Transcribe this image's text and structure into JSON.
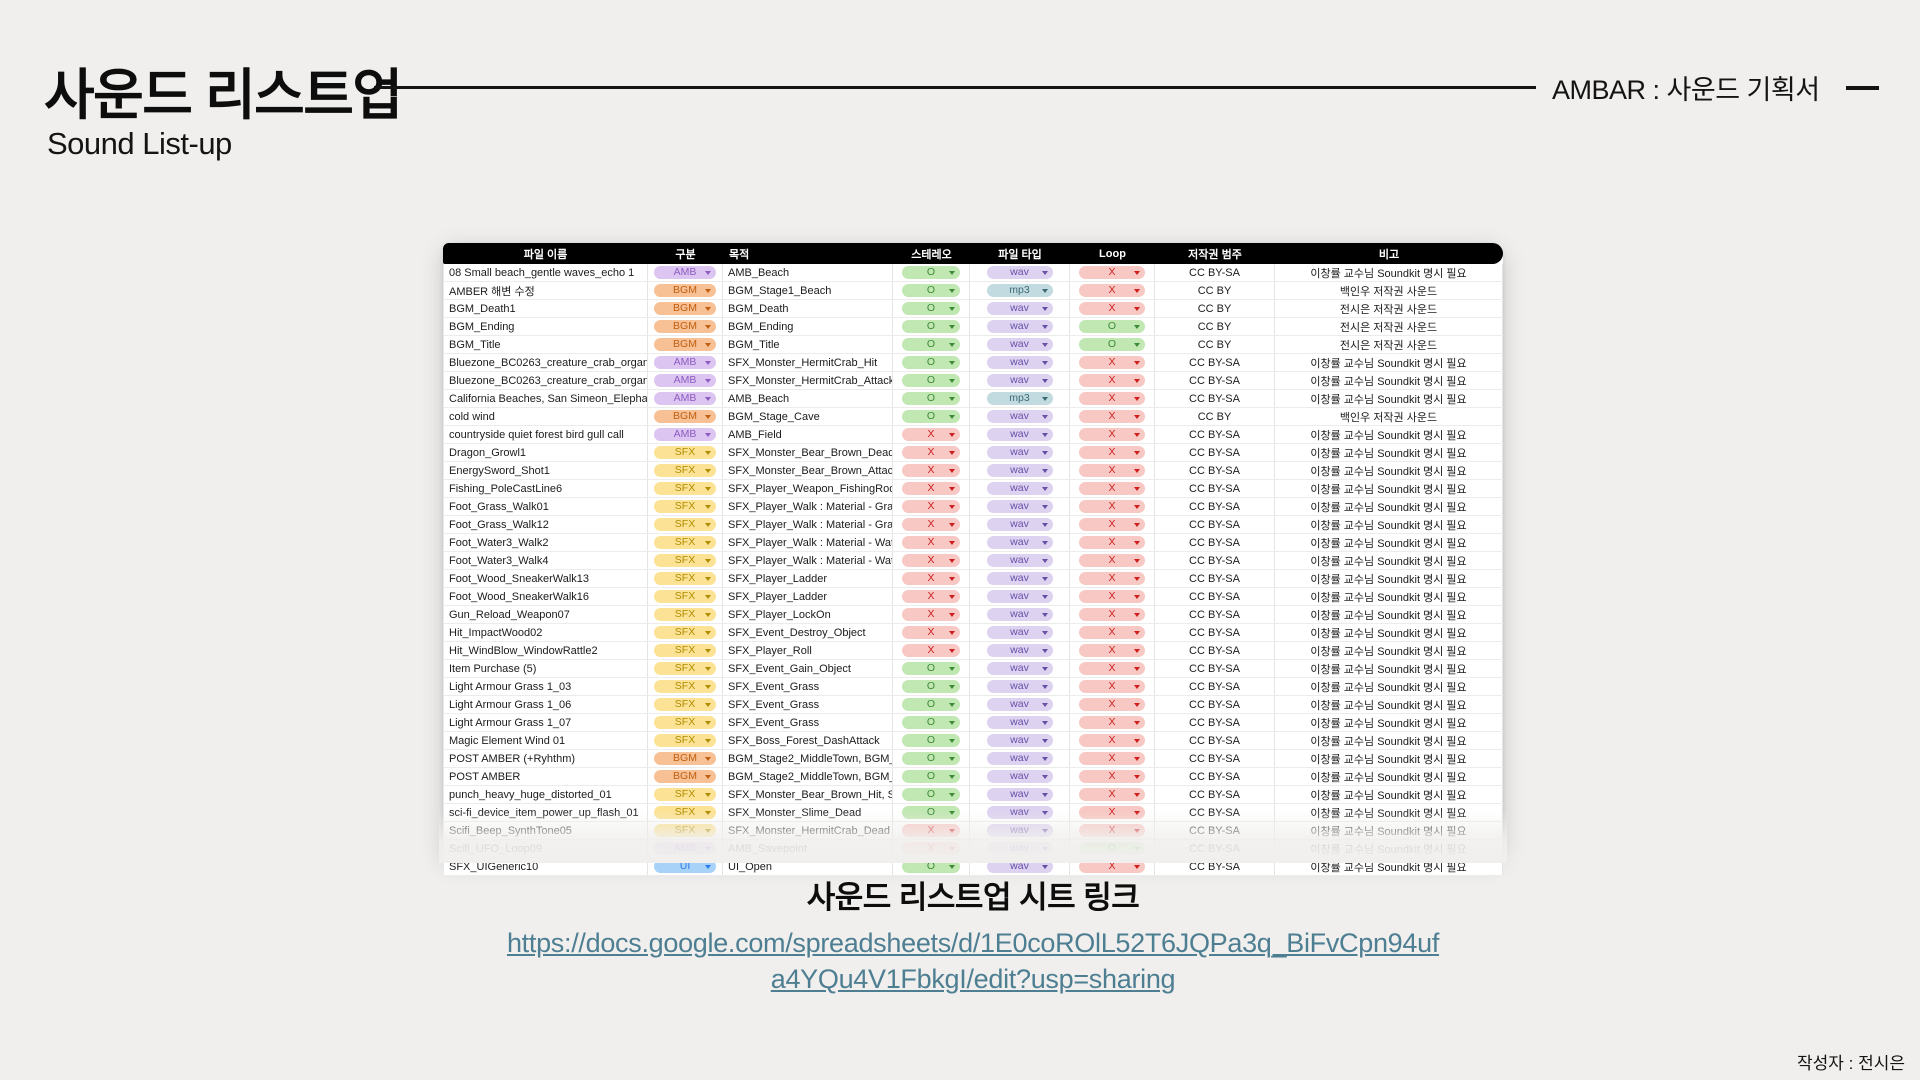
{
  "slide": {
    "title": "사운드 리스트업",
    "subtitle": "Sound List-up",
    "header_right": "AMBAR : 사운드 기획서",
    "link_heading": "사운드 리스트업 시트 링크",
    "link_line1": "https://docs.google.com/spreadsheets/d/1E0coROlL52T6JQPa3q_BiFvCpn94uf",
    "link_line2": "a4YQu4V1FbkgI/edit?usp=sharing",
    "link_url": "https://docs.google.com/spreadsheets/d/1E0coROlL52T6JQPa3q_BiFvCpn94ufa4YQu4V1FbkgI/edit?usp=sharing",
    "author": "작성자 : 전시은"
  },
  "colors": {
    "background": "#f0efed",
    "header_bar": "#000000",
    "link": "#4d7e92",
    "rule": "#141414"
  },
  "table": {
    "columns": [
      "파일 이름",
      "구분",
      "목적",
      "스테레오",
      "파일 타입",
      "Loop",
      "저작권 범주",
      "비고"
    ],
    "pill_colors": {
      "AMB": {
        "bg": "#dcc6f1",
        "fg": "#8e5bc2"
      },
      "BGM": {
        "bg": "#f8c095",
        "fg": "#c05f10"
      },
      "SFX": {
        "bg": "#fce294",
        "fg": "#b08c00"
      },
      "UI": {
        "bg": "#a9d2f8",
        "fg": "#2b7de9"
      },
      "O": {
        "bg": "#c1e7b3",
        "fg": "#3d8b37"
      },
      "X": {
        "bg": "#f8c8c4",
        "fg": "#cc1f1f"
      },
      "wav": {
        "bg": "#ddd2f0",
        "fg": "#674ea7"
      },
      "mp3": {
        "bg": "#c2dbe0",
        "fg": "#3d6a75"
      }
    },
    "rows": [
      {
        "name": "08 Small beach_gentle waves_echo 1",
        "category": "AMB",
        "purpose": "AMB_Beach",
        "stereo": "O",
        "filetype": "wav",
        "loop": "X",
        "copyright": "CC BY-SA",
        "note": "이창률 교수님 Soundkit 명시 필요"
      },
      {
        "name": "AMBER 해변 수정",
        "category": "BGM",
        "purpose": "BGM_Stage1_Beach",
        "stereo": "O",
        "filetype": "mp3",
        "loop": "X",
        "copyright": "CC BY",
        "note": "백인우 저작권 사운드"
      },
      {
        "name": "BGM_Death1",
        "category": "BGM",
        "purpose": "BGM_Death",
        "stereo": "O",
        "filetype": "wav",
        "loop": "X",
        "copyright": "CC BY",
        "note": "전시은 저작권 사운드"
      },
      {
        "name": "BGM_Ending",
        "category": "BGM",
        "purpose": "BGM_Ending",
        "stereo": "O",
        "filetype": "wav",
        "loop": "O",
        "copyright": "CC BY",
        "note": "전시은 저작권 사운드"
      },
      {
        "name": "BGM_Title",
        "category": "BGM",
        "purpose": "BGM_Title",
        "stereo": "O",
        "filetype": "wav",
        "loop": "O",
        "copyright": "CC BY",
        "note": "전시은 저작권 사운드"
      },
      {
        "name": "Bluezone_BC0263_creature_crab_organic_t",
        "category": "AMB",
        "purpose": "SFX_Monster_HermitCrab_Hit",
        "stereo": "O",
        "filetype": "wav",
        "loop": "X",
        "copyright": "CC BY-SA",
        "note": "이창률 교수님 Soundkit 명시 필요"
      },
      {
        "name": "Bluezone_BC0263_creature_crab_organic_t",
        "category": "AMB",
        "purpose": "SFX_Monster_HermitCrab_Attack",
        "stereo": "O",
        "filetype": "wav",
        "loop": "X",
        "copyright": "CC BY-SA",
        "note": "이창률 교수님 Soundkit 명시 필요"
      },
      {
        "name": "California Beaches, San Simeon_Elephant S",
        "category": "AMB",
        "purpose": "AMB_Beach",
        "stereo": "O",
        "filetype": "mp3",
        "loop": "X",
        "copyright": "CC BY-SA",
        "note": "이창률 교수님 Soundkit 명시 필요"
      },
      {
        "name": "cold wind",
        "category": "BGM",
        "purpose": "BGM_Stage_Cave",
        "stereo": "O",
        "filetype": "wav",
        "loop": "X",
        "copyright": "CC BY",
        "note": "백인우 저작권 사운드"
      },
      {
        "name": "countryside quiet forest bird gull call",
        "category": "AMB",
        "purpose": "AMB_Field",
        "stereo": "X",
        "filetype": "wav",
        "loop": "X",
        "copyright": "CC BY-SA",
        "note": "이창률 교수님 Soundkit 명시 필요"
      },
      {
        "name": "Dragon_Growl1",
        "category": "SFX",
        "purpose": "SFX_Monster_Bear_Brown_Dead, S",
        "stereo": "X",
        "filetype": "wav",
        "loop": "X",
        "copyright": "CC BY-SA",
        "note": "이창률 교수님 Soundkit 명시 필요"
      },
      {
        "name": "EnergySword_Shot1",
        "category": "SFX",
        "purpose": "SFX_Monster_Bear_Brown_Attack, S",
        "stereo": "X",
        "filetype": "wav",
        "loop": "X",
        "copyright": "CC BY-SA",
        "note": "이창률 교수님 Soundkit 명시 필요"
      },
      {
        "name": "Fishing_PoleCastLine6",
        "category": "SFX",
        "purpose": "SFX_Player_Weapon_FishingRod",
        "stereo": "X",
        "filetype": "wav",
        "loop": "X",
        "copyright": "CC BY-SA",
        "note": "이창률 교수님 Soundkit 명시 필요"
      },
      {
        "name": "Foot_Grass_Walk01",
        "category": "SFX",
        "purpose": "SFX_Player_Walk : Material - Grass",
        "stereo": "X",
        "filetype": "wav",
        "loop": "X",
        "copyright": "CC BY-SA",
        "note": "이창률 교수님 Soundkit 명시 필요"
      },
      {
        "name": "Foot_Grass_Walk12",
        "category": "SFX",
        "purpose": "SFX_Player_Walk : Material - Grass",
        "stereo": "X",
        "filetype": "wav",
        "loop": "X",
        "copyright": "CC BY-SA",
        "note": "이창률 교수님 Soundkit 명시 필요"
      },
      {
        "name": "Foot_Water3_Walk2",
        "category": "SFX",
        "purpose": "SFX_Player_Walk : Material - Water",
        "stereo": "X",
        "filetype": "wav",
        "loop": "X",
        "copyright": "CC BY-SA",
        "note": "이창률 교수님 Soundkit 명시 필요"
      },
      {
        "name": "Foot_Water3_Walk4",
        "category": "SFX",
        "purpose": "SFX_Player_Walk : Material - Water",
        "stereo": "X",
        "filetype": "wav",
        "loop": "X",
        "copyright": "CC BY-SA",
        "note": "이창률 교수님 Soundkit 명시 필요"
      },
      {
        "name": "Foot_Wood_SneakerWalk13",
        "category": "SFX",
        "purpose": "SFX_Player_Ladder",
        "stereo": "X",
        "filetype": "wav",
        "loop": "X",
        "copyright": "CC BY-SA",
        "note": "이창률 교수님 Soundkit 명시 필요"
      },
      {
        "name": "Foot_Wood_SneakerWalk16",
        "category": "SFX",
        "purpose": "SFX_Player_Ladder",
        "stereo": "X",
        "filetype": "wav",
        "loop": "X",
        "copyright": "CC BY-SA",
        "note": "이창률 교수님 Soundkit 명시 필요"
      },
      {
        "name": "Gun_Reload_Weapon07",
        "category": "SFX",
        "purpose": "SFX_Player_LockOn",
        "stereo": "X",
        "filetype": "wav",
        "loop": "X",
        "copyright": "CC BY-SA",
        "note": "이창률 교수님 Soundkit 명시 필요"
      },
      {
        "name": "Hit_ImpactWood02",
        "category": "SFX",
        "purpose": "SFX_Event_Destroy_Object",
        "stereo": "X",
        "filetype": "wav",
        "loop": "X",
        "copyright": "CC BY-SA",
        "note": "이창률 교수님 Soundkit 명시 필요"
      },
      {
        "name": "Hit_WindBlow_WindowRattle2",
        "category": "SFX",
        "purpose": "SFX_Player_Roll",
        "stereo": "X",
        "filetype": "wav",
        "loop": "X",
        "copyright": "CC BY-SA",
        "note": "이창률 교수님 Soundkit 명시 필요"
      },
      {
        "name": "Item Purchase (5)",
        "category": "SFX",
        "purpose": "SFX_Event_Gain_Object",
        "stereo": "O",
        "filetype": "wav",
        "loop": "X",
        "copyright": "CC BY-SA",
        "note": "이창률 교수님 Soundkit 명시 필요"
      },
      {
        "name": "Light Armour Grass 1_03",
        "category": "SFX",
        "purpose": "SFX_Event_Grass",
        "stereo": "O",
        "filetype": "wav",
        "loop": "X",
        "copyright": "CC BY-SA",
        "note": "이창률 교수님 Soundkit 명시 필요"
      },
      {
        "name": "Light Armour Grass 1_06",
        "category": "SFX",
        "purpose": "SFX_Event_Grass",
        "stereo": "O",
        "filetype": "wav",
        "loop": "X",
        "copyright": "CC BY-SA",
        "note": "이창률 교수님 Soundkit 명시 필요"
      },
      {
        "name": "Light Armour Grass 1_07",
        "category": "SFX",
        "purpose": "SFX_Event_Grass",
        "stereo": "O",
        "filetype": "wav",
        "loop": "X",
        "copyright": "CC BY-SA",
        "note": "이창률 교수님 Soundkit 명시 필요"
      },
      {
        "name": "Magic Element Wind 01",
        "category": "SFX",
        "purpose": "SFX_Boss_Forest_DashAttack",
        "stereo": "O",
        "filetype": "wav",
        "loop": "X",
        "copyright": "CC BY-SA",
        "note": "이창률 교수님 Soundkit 명시 필요"
      },
      {
        "name": "POST AMBER (+Ryhthm)",
        "category": "BGM",
        "purpose": "BGM_Stage2_MiddleTown, BGM_Sta",
        "stereo": "O",
        "filetype": "wav",
        "loop": "X",
        "copyright": "CC BY-SA",
        "note": "이창률 교수님 Soundkit 명시 필요"
      },
      {
        "name": "POST AMBER",
        "category": "BGM",
        "purpose": "BGM_Stage2_MiddleTown, BGM_Sta",
        "stereo": "O",
        "filetype": "wav",
        "loop": "X",
        "copyright": "CC BY-SA",
        "note": "이창률 교수님 Soundkit 명시 필요"
      },
      {
        "name": "punch_heavy_huge_distorted_01",
        "category": "SFX",
        "purpose": "SFX_Monster_Bear_Brown_Hit, SFX",
        "stereo": "O",
        "filetype": "wav",
        "loop": "X",
        "copyright": "CC BY-SA",
        "note": "이창률 교수님 Soundkit 명시 필요"
      },
      {
        "name": "sci-fi_device_item_power_up_flash_01",
        "category": "SFX",
        "purpose": "SFX_Monster_Slime_Dead",
        "stereo": "O",
        "filetype": "wav",
        "loop": "X",
        "copyright": "CC BY-SA",
        "note": "이창률 교수님 Soundkit 명시 필요"
      },
      {
        "name": "Scifi_Beep_SynthTone05",
        "category": "SFX",
        "purpose": "SFX_Monster_HermitCrab_Dead",
        "stereo": "X",
        "filetype": "wav",
        "loop": "X",
        "copyright": "CC BY-SA",
        "note": "이창률 교수님 Soundkit 명시 필요"
      },
      {
        "name": "Scifi_UFO_Loop09",
        "category": "AMB",
        "purpose": "AMB_Savepoint",
        "stereo": "X",
        "filetype": "wav",
        "loop": "O",
        "copyright": "CC BY-SA",
        "note": "이창률 교수님 Soundkit 명시 필요"
      },
      {
        "name": "SFX_UIGeneric10",
        "category": "UI",
        "purpose": "UI_Open",
        "stereo": "O",
        "filetype": "wav",
        "loop": "X",
        "copyright": "CC BY-SA",
        "note": "이창률 교수님 Soundkit 명시 필요"
      }
    ]
  }
}
